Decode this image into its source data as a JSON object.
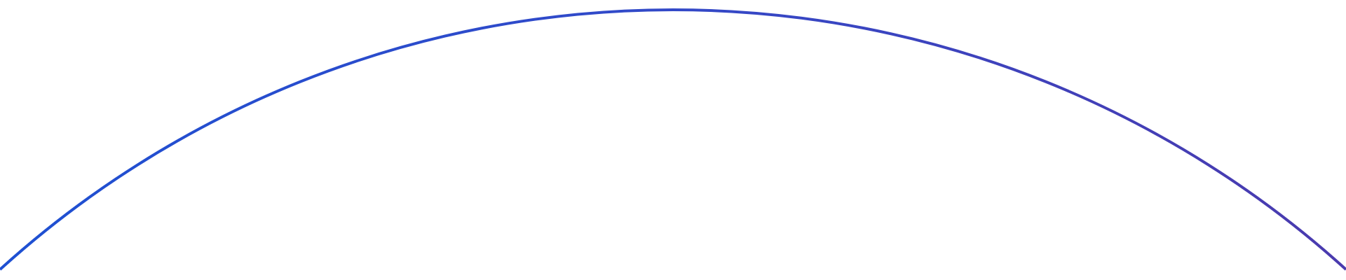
{
  "arc": {
    "color_start": "#1E50D2",
    "color_mid": "#3349C8",
    "color_end": "#4A3AAE",
    "background": "#ffffff"
  }
}
